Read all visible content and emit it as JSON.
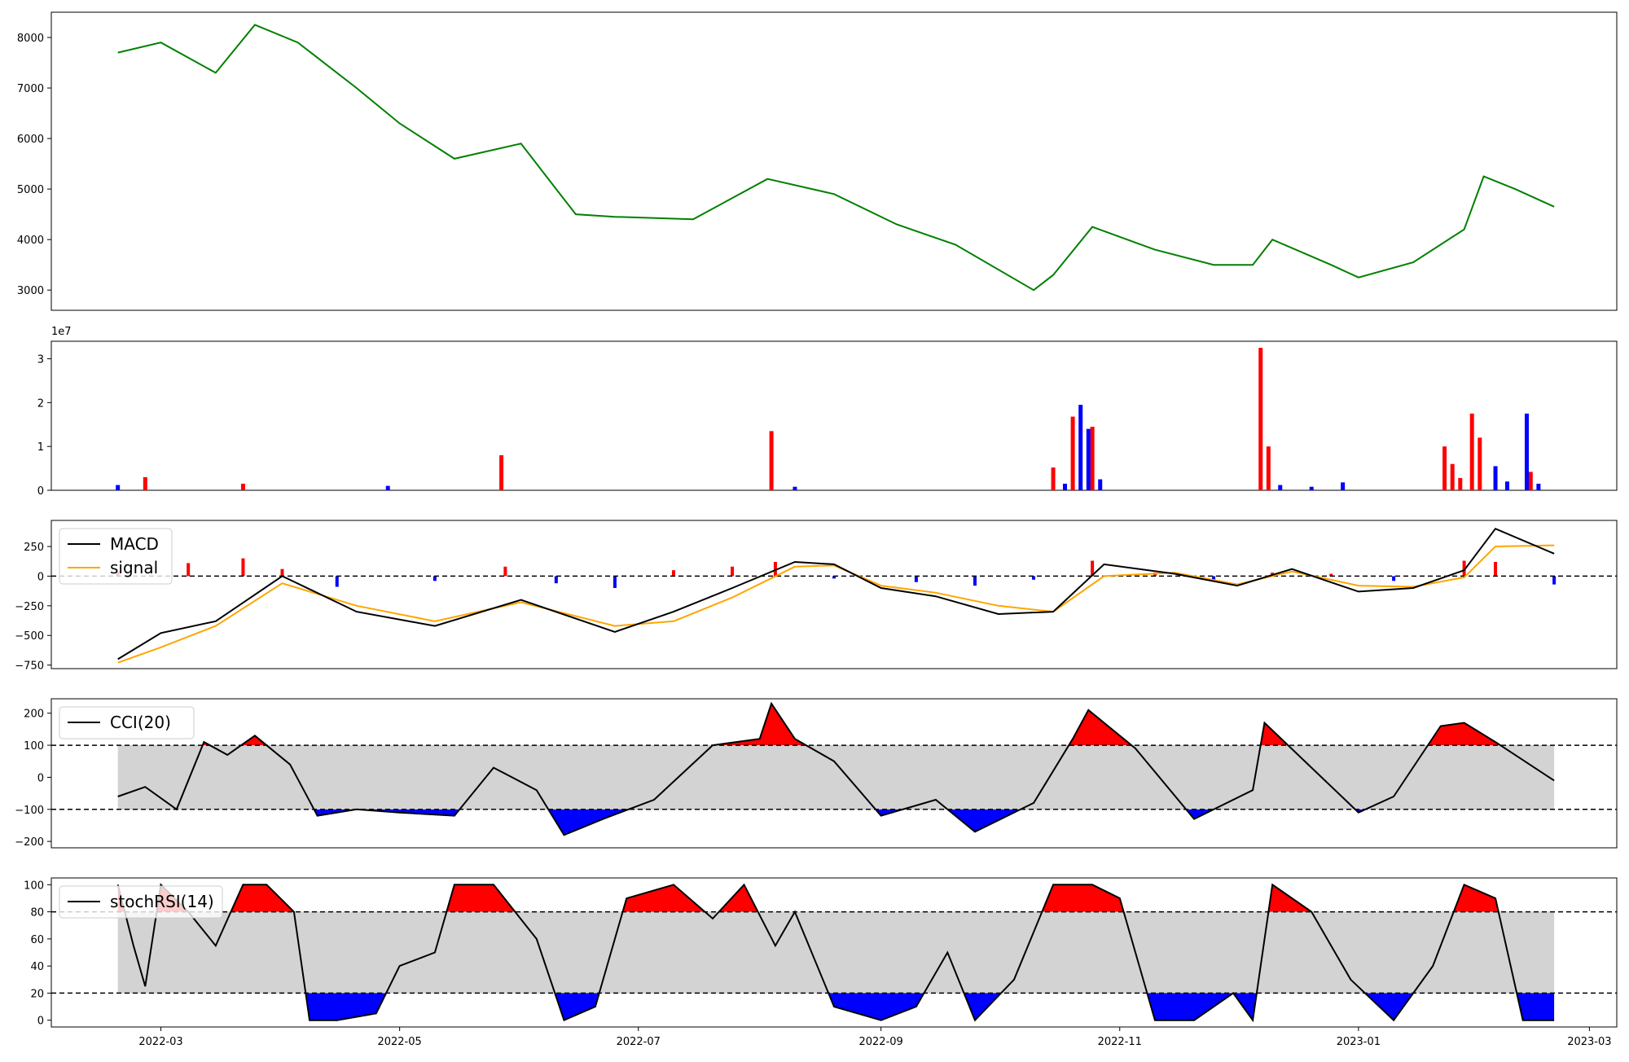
{
  "chart_data": [
    {
      "type": "line",
      "panel": "price",
      "ylim": [
        2600,
        8500
      ],
      "yticks": [
        3000,
        4000,
        5000,
        6000,
        7000,
        8000
      ],
      "colors": {
        "line": "#008000"
      },
      "series": [
        {
          "x": [
            "2022-02-18",
            "2022-03-01",
            "2022-03-15",
            "2022-03-25",
            "2022-04-05",
            "2022-04-20",
            "2022-05-01",
            "2022-05-15",
            "2022-06-01",
            "2022-06-10",
            "2022-06-15",
            "2022-06-25",
            "2022-07-15",
            "2022-08-03",
            "2022-08-20",
            "2022-09-05",
            "2022-09-20",
            "2022-10-10",
            "2022-10-15",
            "2022-10-25",
            "2022-11-10",
            "2022-11-25",
            "2022-12-05",
            "2022-12-10",
            "2022-12-25",
            "2023-01-01",
            "2023-01-15",
            "2023-01-28",
            "2023-02-02",
            "2023-02-10",
            "2023-02-20"
          ],
          "y": [
            7700,
            7900,
            7300,
            8250,
            7900,
            7000,
            6300,
            5600,
            5900,
            5000,
            4500,
            4450,
            4400,
            5200,
            4900,
            4300,
            3900,
            3000,
            3300,
            4250,
            3800,
            3500,
            3500,
            4000,
            3500,
            3250,
            3550,
            4200,
            5250,
            5000,
            4650
          ]
        }
      ]
    },
    {
      "type": "bar",
      "panel": "volume",
      "scale_label": "1e7",
      "ylim": [
        0,
        34000000
      ],
      "yticks": [
        0,
        10000000,
        20000000,
        30000000
      ],
      "ytick_labels": [
        "0",
        "1",
        "2",
        "3"
      ],
      "colors": {
        "up": "#ff0000",
        "down": "#0000ff"
      },
      "series": [
        {
          "name": "up",
          "x": [
            "2022-02-25",
            "2022-03-22",
            "2022-05-27",
            "2022-08-04",
            "2022-10-15",
            "2022-10-20",
            "2022-10-25",
            "2022-12-07",
            "2022-12-09",
            "2023-01-23",
            "2023-01-25",
            "2023-01-27",
            "2023-01-30",
            "2023-02-01",
            "2023-02-14"
          ],
          "values": [
            3000000,
            1500000,
            8000000,
            13500000,
            5200000,
            16800000,
            14500000,
            32500000,
            10000000,
            10000000,
            6000000,
            2800000,
            17500000,
            12000000,
            4200000
          ]
        },
        {
          "name": "down",
          "x": [
            "2022-02-18",
            "2022-04-28",
            "2022-08-10",
            "2022-10-18",
            "2022-10-22",
            "2022-10-24",
            "2022-10-27",
            "2022-12-12",
            "2022-12-20",
            "2022-12-28",
            "2023-02-05",
            "2023-02-08",
            "2023-02-13",
            "2023-02-16"
          ],
          "values": [
            1200000,
            1000000,
            800000,
            1500000,
            19500000,
            14000000,
            2500000,
            1200000,
            800000,
            1800000,
            5500000,
            2000000,
            17500000,
            1500000
          ]
        }
      ]
    },
    {
      "type": "line",
      "panel": "macd",
      "ylim": [
        -780,
        470
      ],
      "yticks": [
        -750,
        -500,
        -250,
        0,
        250
      ],
      "colors": {
        "macd": "#000000",
        "signal": "#ffa500",
        "hist_up": "#ff0000",
        "hist_down": "#0000ff"
      },
      "legend": [
        "MACD",
        "signal"
      ],
      "legend_placement": "upper-left",
      "x": [
        "2022-02-18",
        "2022-03-01",
        "2022-03-15",
        "2022-04-01",
        "2022-04-20",
        "2022-05-10",
        "2022-06-01",
        "2022-06-25",
        "2022-07-10",
        "2022-07-25",
        "2022-08-10",
        "2022-08-20",
        "2022-09-01",
        "2022-09-15",
        "2022-10-01",
        "2022-10-15",
        "2022-10-28",
        "2022-11-15",
        "2022-12-01",
        "2022-12-15",
        "2023-01-01",
        "2023-01-15",
        "2023-01-28",
        "2023-02-05",
        "2023-02-20"
      ],
      "series": [
        {
          "name": "MACD",
          "values": [
            -700,
            -480,
            -380,
            0,
            -300,
            -420,
            -200,
            -470,
            -300,
            -100,
            120,
            100,
            -100,
            -170,
            -320,
            -300,
            100,
            20,
            -80,
            60,
            -130,
            -100,
            50,
            400,
            190
          ]
        },
        {
          "name": "signal",
          "values": [
            -730,
            -600,
            -420,
            -60,
            -250,
            -380,
            -220,
            -420,
            -380,
            -180,
            80,
            90,
            -80,
            -140,
            -250,
            -300,
            0,
            30,
            -70,
            40,
            -80,
            -90,
            -10,
            250,
            260
          ]
        }
      ],
      "histogram": {
        "x": [
          "2022-02-18",
          "2022-03-08",
          "2022-03-22",
          "2022-04-01",
          "2022-04-15",
          "2022-05-10",
          "2022-05-28",
          "2022-06-10",
          "2022-06-25",
          "2022-07-10",
          "2022-07-25",
          "2022-08-05",
          "2022-08-20",
          "2022-09-10",
          "2022-09-25",
          "2022-10-10",
          "2022-10-25",
          "2022-11-10",
          "2022-11-25",
          "2022-12-10",
          "2022-12-25",
          "2023-01-10",
          "2023-01-28",
          "2023-02-05",
          "2023-02-20"
        ],
        "values": [
          40,
          110,
          150,
          60,
          -90,
          -40,
          80,
          -60,
          -100,
          50,
          80,
          120,
          -20,
          -50,
          -80,
          -30,
          130,
          30,
          -30,
          30,
          20,
          -40,
          130,
          120,
          -70
        ]
      }
    },
    {
      "type": "area",
      "panel": "cci",
      "ylim": [
        -220,
        245
      ],
      "yticks": [
        -200,
        -100,
        0,
        100,
        200
      ],
      "thresholds": [
        100,
        -100
      ],
      "colors": {
        "line": "#000000",
        "band": "#d3d3d3",
        "over": "#ff0000",
        "under": "#0000ff"
      },
      "legend": [
        "CCI(20)"
      ],
      "legend_placement": "upper-left",
      "series": [
        {
          "name": "CCI(20)",
          "x": [
            "2022-02-18",
            "2022-02-25",
            "2022-03-05",
            "2022-03-12",
            "2022-03-18",
            "2022-03-25",
            "2022-04-03",
            "2022-04-10",
            "2022-04-20",
            "2022-05-01",
            "2022-05-15",
            "2022-05-25",
            "2022-06-05",
            "2022-06-12",
            "2022-06-22",
            "2022-07-05",
            "2022-07-20",
            "2022-08-01",
            "2022-08-04",
            "2022-08-10",
            "2022-08-20",
            "2022-09-01",
            "2022-09-15",
            "2022-09-25",
            "2022-10-10",
            "2022-10-20",
            "2022-10-24",
            "2022-11-05",
            "2022-11-20",
            "2022-12-05",
            "2022-12-08",
            "2022-12-20",
            "2023-01-01",
            "2023-01-10",
            "2023-01-22",
            "2023-01-28",
            "2023-02-05",
            "2023-02-20"
          ],
          "y": [
            -60,
            -30,
            -100,
            110,
            70,
            130,
            40,
            -120,
            -100,
            -110,
            -120,
            30,
            -40,
            -180,
            -130,
            -70,
            100,
            120,
            230,
            120,
            50,
            -120,
            -70,
            -170,
            -80,
            120,
            210,
            90,
            -130,
            -40,
            170,
            30,
            -110,
            -60,
            160,
            170,
            110,
            -10
          ]
        }
      ]
    },
    {
      "type": "area",
      "panel": "stochrsi",
      "ylim": [
        -5,
        105
      ],
      "yticks": [
        0,
        20,
        40,
        60,
        80,
        100
      ],
      "thresholds": [
        80,
        20
      ],
      "colors": {
        "line": "#000000",
        "band": "#d3d3d3",
        "over": "#ff0000",
        "under": "#0000ff"
      },
      "legend": [
        "stochRSI(14)"
      ],
      "legend_placement": "upper-left",
      "xticks": [
        "2022-03-01",
        "2022-05-01",
        "2022-07-01",
        "2022-09-01",
        "2022-11-01",
        "2023-01-01",
        "2023-03-01"
      ],
      "xtick_labels": [
        "2022-03",
        "2022-05",
        "2022-07",
        "2022-09",
        "2022-11",
        "2023-01",
        "2023-03"
      ],
      "series": [
        {
          "name": "stochRSI(14)",
          "x": [
            "2022-02-18",
            "2022-02-22",
            "2022-02-25",
            "2022-03-01",
            "2022-03-08",
            "2022-03-15",
            "2022-03-22",
            "2022-03-28",
            "2022-04-04",
            "2022-04-08",
            "2022-04-15",
            "2022-04-25",
            "2022-05-01",
            "2022-05-10",
            "2022-05-15",
            "2022-05-25",
            "2022-06-05",
            "2022-06-12",
            "2022-06-20",
            "2022-06-28",
            "2022-07-10",
            "2022-07-20",
            "2022-07-28",
            "2022-08-05",
            "2022-08-10",
            "2022-08-20",
            "2022-09-01",
            "2022-09-10",
            "2022-09-18",
            "2022-09-25",
            "2022-10-05",
            "2022-10-15",
            "2022-10-25",
            "2022-11-01",
            "2022-11-10",
            "2022-11-20",
            "2022-11-30",
            "2022-12-05",
            "2022-12-10",
            "2022-12-20",
            "2022-12-30",
            "2023-01-10",
            "2023-01-20",
            "2023-01-28",
            "2023-02-05",
            "2023-02-12",
            "2023-02-20"
          ],
          "y": [
            100,
            55,
            25,
            100,
            80,
            55,
            100,
            100,
            80,
            0,
            0,
            5,
            40,
            50,
            100,
            100,
            60,
            0,
            10,
            90,
            100,
            75,
            100,
            55,
            80,
            10,
            0,
            10,
            50,
            0,
            30,
            100,
            100,
            90,
            0,
            0,
            20,
            0,
            100,
            80,
            30,
            0,
            40,
            100,
            90,
            0,
            0
          ]
        }
      ]
    }
  ]
}
